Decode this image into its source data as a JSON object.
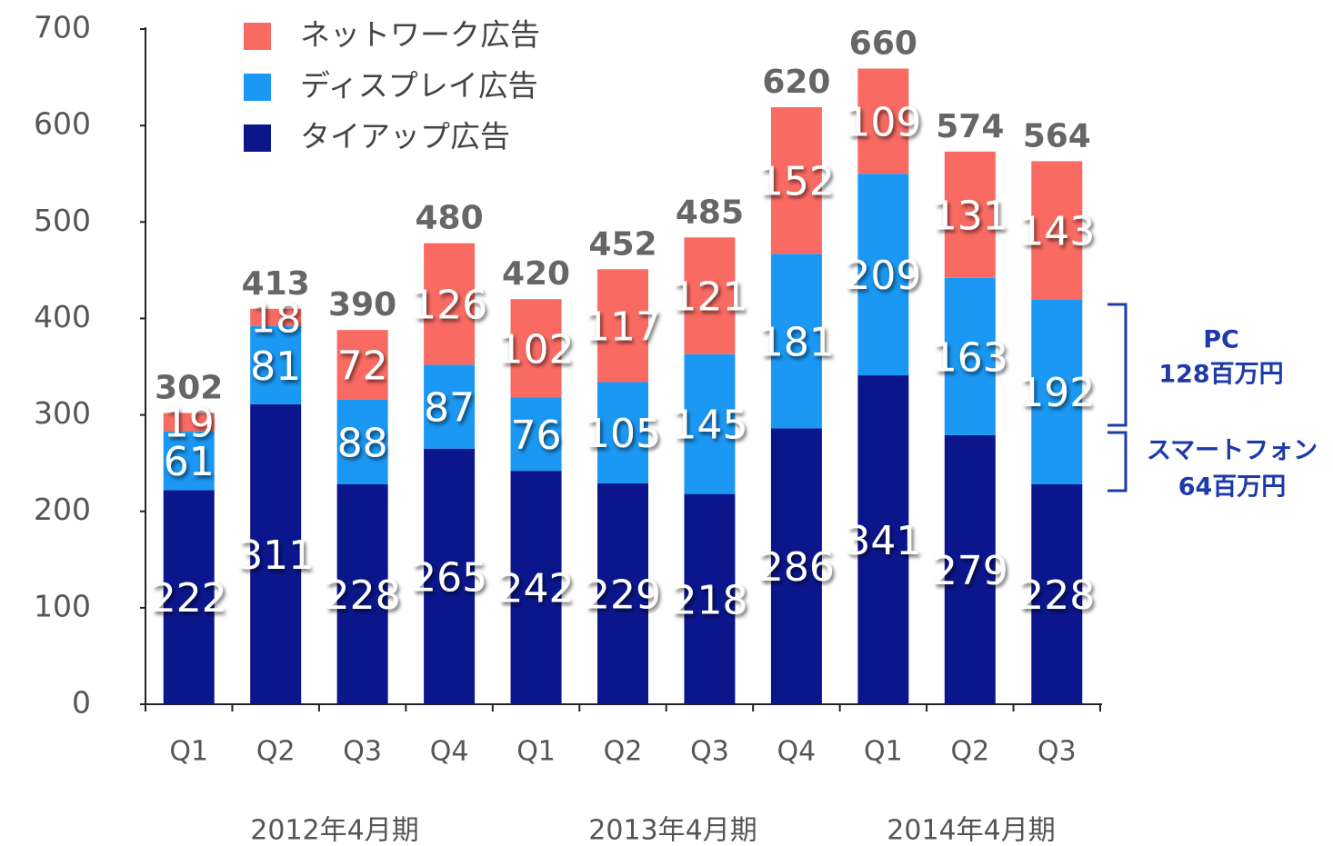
{
  "chart_data": {
    "type": "stacked_bar",
    "categories": [
      "Q1",
      "Q2",
      "Q3",
      "Q4",
      "Q1",
      "Q2",
      "Q3",
      "Q4",
      "Q1",
      "Q2",
      "Q3"
    ],
    "series": [
      {
        "name": "タイアップ広告",
        "color": "#0b168c",
        "values": [
          222,
          311,
          228,
          265,
          242,
          229,
          218,
          286,
          341,
          279,
          228
        ]
      },
      {
        "name": "ディスプレイ広告",
        "color": "#1b98f3",
        "values": [
          61,
          81,
          88,
          87,
          76,
          105,
          145,
          181,
          209,
          163,
          192
        ]
      },
      {
        "name": "ネットワーク広告",
        "color": "#f96b62",
        "values": [
          19,
          18,
          72,
          126,
          102,
          117,
          121,
          152,
          109,
          131,
          143
        ]
      }
    ],
    "totals": [
      302,
      413,
      390,
      480,
      420,
      452,
      485,
      620,
      660,
      574,
      564
    ],
    "groups": [
      "2012年4月期",
      "2013年4月期",
      "2014年4月期"
    ],
    "annotations": [
      {
        "title": "PC",
        "value": "128百万円"
      },
      {
        "title": "スマートフォン",
        "value": "64百万円"
      }
    ],
    "ylim": [
      0,
      700
    ],
    "yticks": [
      0,
      100,
      200,
      300,
      400,
      500,
      600,
      700
    ],
    "legend": "top-left"
  }
}
